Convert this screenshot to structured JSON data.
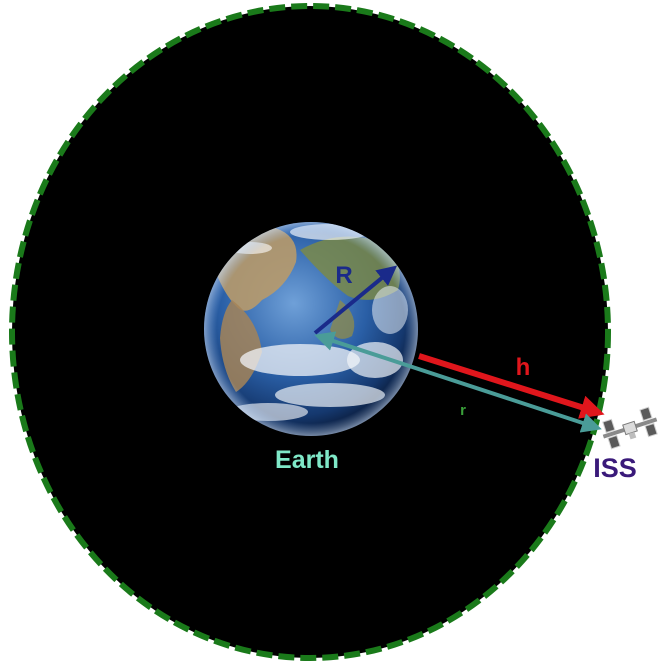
{
  "labels": {
    "earth": "Earth",
    "earth_radius": "R",
    "altitude": "h",
    "orbit_radius": "r",
    "station": "ISS"
  },
  "colors": {
    "space": "#000000",
    "orbit_dash": "#1a7a1a",
    "earth_label": "#7fe8c8",
    "radius_R": "#1a2a8a",
    "altitude_h": "#e0161c",
    "radius_r": "#4a9c98",
    "iss_label": "#3a1a7a"
  },
  "icons": {
    "earth": "earth-globe-icon",
    "station": "space-station-icon"
  }
}
